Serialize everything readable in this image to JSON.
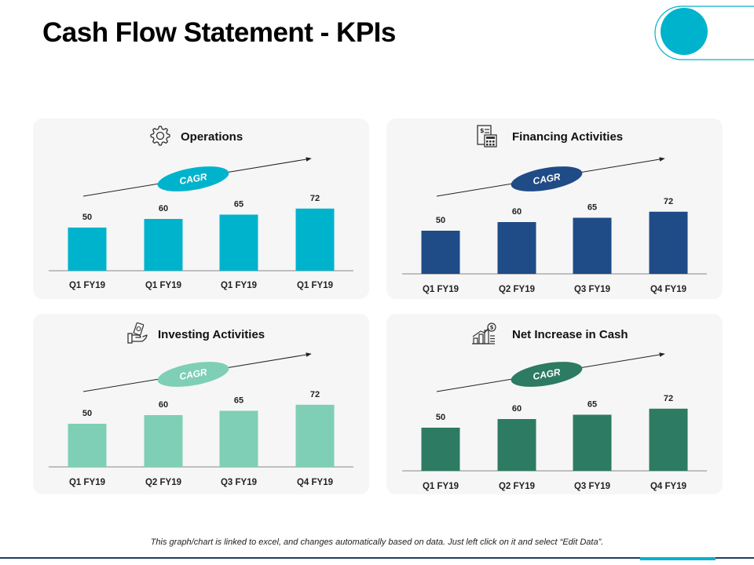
{
  "page": {
    "title": "Cash Flow Statement - KPIs",
    "footnote": "This graph/chart is linked to excel, and changes automatically based on data. Just left click on it and select “Edit Data”.",
    "accent_color": "#00b3cc"
  },
  "chart_data": [
    {
      "type": "bar",
      "title": "Operations",
      "icon": "gear-icon",
      "badge": "CAGR",
      "color": "#00b3cc",
      "badge_color": "#00b3cc",
      "categories": [
        "Q1 FY19",
        "Q1 FY19",
        "Q1 FY19",
        "Q1 FY19"
      ],
      "values": [
        50,
        60,
        65,
        72
      ]
    },
    {
      "type": "bar",
      "title": "Financing Activities",
      "icon": "calculator-document-icon",
      "badge": "CAGR",
      "color": "#1f4b87",
      "badge_color": "#1f4b87",
      "categories": [
        "Q1 FY19",
        "Q2 FY19",
        "Q3 FY19",
        "Q4 FY19"
      ],
      "values": [
        50,
        60,
        65,
        72
      ]
    },
    {
      "type": "bar",
      "title": "Investing Activities",
      "icon": "money-hand-icon",
      "badge": "CAGR",
      "color": "#7ecfb5",
      "badge_color": "#7ecfb5",
      "categories": [
        "Q1 FY19",
        "Q2 FY19",
        "Q3 FY19",
        "Q4 FY19"
      ],
      "values": [
        50,
        60,
        65,
        72
      ]
    },
    {
      "type": "bar",
      "title": "Net Increase in Cash",
      "icon": "growth-chart-icon",
      "badge": "CAGR",
      "color": "#2c7b62",
      "badge_color": "#2c7b62",
      "categories": [
        "Q1 FY19",
        "Q2 FY19",
        "Q3 FY19",
        "Q4 FY19"
      ],
      "values": [
        50,
        60,
        65,
        72
      ]
    }
  ]
}
